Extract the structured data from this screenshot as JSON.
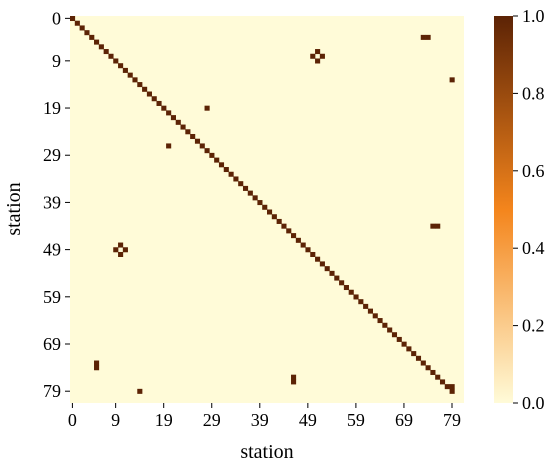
{
  "chart_data": {
    "type": "heatmap",
    "xlabel": "station",
    "ylabel": "station",
    "n": 82,
    "xticks": [
      "0",
      "9",
      "19",
      "29",
      "39",
      "49",
      "59",
      "69",
      "79"
    ],
    "yticks": [
      "0",
      "9",
      "19",
      "29",
      "39",
      "49",
      "59",
      "69",
      "79"
    ],
    "colorbar_ticks": [
      "0.0",
      "0.2",
      "0.4",
      "0.6",
      "0.8",
      "1.0"
    ],
    "vmin": 0,
    "vmax": 1,
    "colors": {
      "low": "#fffbd8",
      "mid": "#f4851c",
      "high": "#5c2305"
    },
    "diagonal_from": 1,
    "diagonal_to": 79,
    "off_diagonal_cells": [
      [
        0,
        0
      ],
      [
        19,
        28
      ],
      [
        27,
        20
      ],
      [
        4,
        73
      ],
      [
        4,
        74
      ],
      [
        7,
        51
      ],
      [
        8,
        50
      ],
      [
        8,
        52
      ],
      [
        9,
        51
      ],
      [
        48,
        10
      ],
      [
        49,
        9
      ],
      [
        49,
        11
      ],
      [
        50,
        10
      ],
      [
        13,
        79
      ],
      [
        44,
        75
      ],
      [
        44,
        76
      ],
      [
        73,
        5
      ],
      [
        74,
        5
      ],
      [
        76,
        46
      ],
      [
        77,
        46
      ],
      [
        78,
        79
      ],
      [
        79,
        14
      ]
    ]
  }
}
